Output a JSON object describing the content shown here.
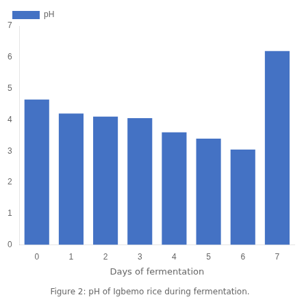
{
  "chart_data": {
    "type": "bar",
    "title": "Figure 2: pH of Igbemo rice during fermentation.",
    "x_label": "Days of fermentation",
    "categories": [
      0,
      1,
      2,
      3,
      4,
      5,
      6,
      7
    ],
    "series": [
      {
        "name": "pH",
        "color": "#4472C4",
        "values": [
          4.65,
          4.2,
          4.1,
          4.05,
          3.6,
          3.4,
          3.05,
          6.2
        ]
      }
    ],
    "ylim": [
      0,
      7
    ],
    "yticks": [
      0,
      1,
      2,
      3,
      4,
      5,
      6,
      7
    ],
    "grid": false,
    "legend": "upper left"
  }
}
